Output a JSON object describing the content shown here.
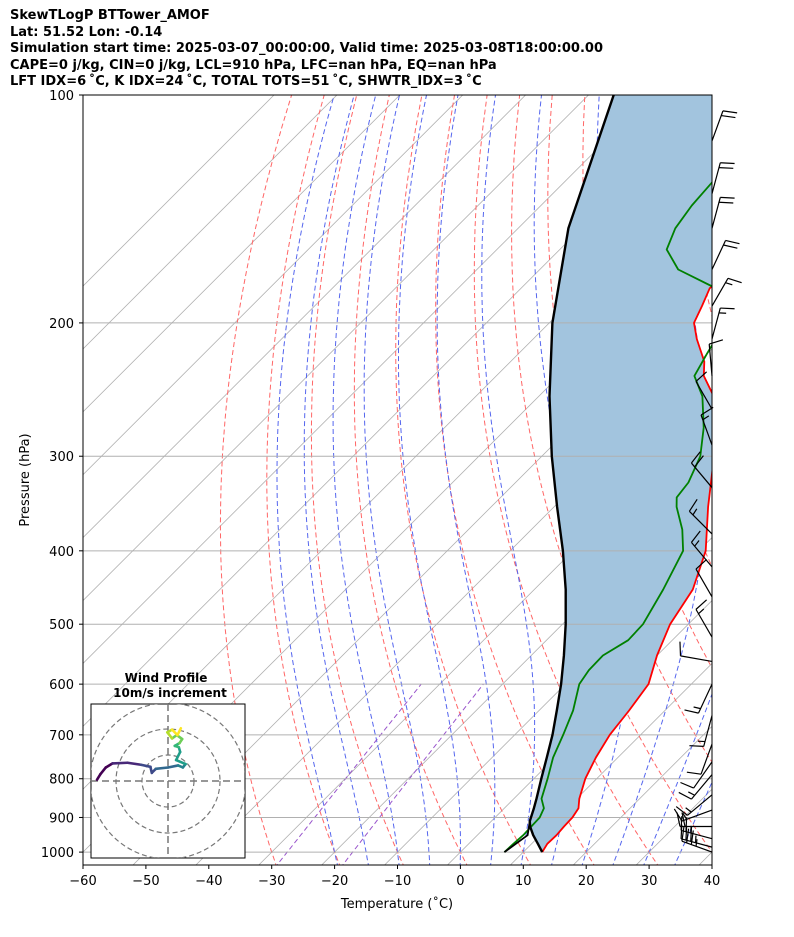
{
  "header": {
    "line1": "SkewTLogP BTTower_AMOF",
    "line2": "Lat: 51.52   Lon: -0.14",
    "line3": "Simulation start time: 2025-03-07_00:00:00, Valid time: 2025-03-08T18:00:00.00",
    "line4": "CAPE=0 j/kg, CIN=0 j/kg, LCL=910 hPa, LFC=nan hPa, EQ=nan hPa",
    "line5": "LFT IDX=6 ˚C, K IDX=24 ˚C, TOTAL TOTS=51 ˚C, SHWTR_IDX=3 ˚C"
  },
  "colors": {
    "temperature": "#ff0000",
    "dewpoint": "#008000",
    "parcel": "#000000",
    "cape_fill": "#a2c4de",
    "dry_adiabat": "#ff6666",
    "moist_adiabat": "#5566ee",
    "mixing_ratio": "#9955cc",
    "isotherm": "#b0b0b0"
  },
  "chart_data": {
    "type": "line",
    "subtype": "skew-T log-P",
    "xlabel": "Temperature (˚C)",
    "ylabel": "Pressure (hPa)",
    "xlim": [
      -60,
      40
    ],
    "ylim": [
      1040,
      100
    ],
    "xticks": [
      "−60",
      "−50",
      "−40",
      "−30",
      "−20",
      "−10",
      "0",
      "10",
      "20",
      "30",
      "40"
    ],
    "xtick_values": [
      -60,
      -50,
      -40,
      -30,
      -20,
      -10,
      0,
      10,
      20,
      30,
      40
    ],
    "yticks": [
      "100",
      "200",
      "300",
      "400",
      "500",
      "600",
      "700",
      "800",
      "900",
      "1000"
    ],
    "ytick_values": [
      100,
      200,
      300,
      400,
      500,
      600,
      700,
      800,
      900,
      1000
    ],
    "grid": true,
    "series": [
      {
        "name": "Temperature",
        "points": [
          [
            1000,
            13.0
          ],
          [
            975,
            12.5
          ],
          [
            950,
            12.6
          ],
          [
            925,
            12.4
          ],
          [
            900,
            12.3
          ],
          [
            875,
            11.8
          ],
          [
            850,
            10.4
          ],
          [
            800,
            8.2
          ],
          [
            750,
            6.5
          ],
          [
            700,
            5.1
          ],
          [
            650,
            4.3
          ],
          [
            600,
            3.2
          ],
          [
            550,
            0.0
          ],
          [
            500,
            -2.9
          ],
          [
            450,
            -4.8
          ],
          [
            400,
            -8.9
          ],
          [
            350,
            -15.5
          ],
          [
            300,
            -22.6
          ],
          [
            275,
            -27.0
          ],
          [
            250,
            -32.2
          ],
          [
            235,
            -37.0
          ],
          [
            225,
            -39.2
          ],
          [
            210,
            -44.0
          ],
          [
            200,
            -47.0
          ],
          [
            190,
            -48.4
          ],
          [
            180,
            -50.0
          ],
          [
            165,
            -49.4
          ],
          [
            150,
            -48.5
          ],
          [
            140,
            -49.0
          ],
          [
            130,
            -51.0
          ],
          [
            120,
            -53.0
          ],
          [
            110,
            -55.0
          ],
          [
            100,
            -57.2
          ]
        ]
      },
      {
        "name": "Dewpoint",
        "points": [
          [
            1000,
            7.0
          ],
          [
            975,
            7.1
          ],
          [
            950,
            7.3
          ],
          [
            925,
            7.2
          ],
          [
            900,
            7.1
          ],
          [
            875,
            6.3
          ],
          [
            850,
            4.4
          ],
          [
            800,
            2.2
          ],
          [
            750,
            -0.3
          ],
          [
            700,
            -2.3
          ],
          [
            650,
            -4.6
          ],
          [
            600,
            -7.8
          ],
          [
            575,
            -8.5
          ],
          [
            550,
            -8.6
          ],
          [
            525,
            -7.0
          ],
          [
            500,
            -7.2
          ],
          [
            450,
            -9.5
          ],
          [
            400,
            -12.5
          ],
          [
            375,
            -16.0
          ],
          [
            350,
            -20.5
          ],
          [
            340,
            -22.0
          ],
          [
            325,
            -22.5
          ],
          [
            300,
            -24.8
          ],
          [
            275,
            -28.8
          ],
          [
            250,
            -34.0
          ],
          [
            235,
            -38.5
          ],
          [
            220,
            -40.0
          ],
          [
            210,
            -41.0
          ],
          [
            200,
            -42.5
          ],
          [
            190,
            -44.0
          ],
          [
            180,
            -49.0
          ],
          [
            170,
            -58.0
          ],
          [
            160,
            -63.0
          ],
          [
            150,
            -65.0
          ],
          [
            140,
            -66.0
          ],
          [
            130,
            -66.5
          ],
          [
            120,
            -67.0
          ],
          [
            110,
            -68.0
          ],
          [
            100,
            -68.5
          ]
        ]
      },
      {
        "name": "Parcel",
        "points": [
          [
            1000,
            13.0
          ],
          [
            975,
            11.0
          ],
          [
            950,
            8.9
          ],
          [
            925,
            7.0
          ],
          [
            910,
            6.1
          ],
          [
            875,
            4.7
          ],
          [
            850,
            3.6
          ],
          [
            800,
            1.2
          ],
          [
            750,
            -1.3
          ],
          [
            700,
            -4.0
          ],
          [
            650,
            -7.2
          ],
          [
            600,
            -10.7
          ],
          [
            550,
            -14.8
          ],
          [
            500,
            -19.5
          ],
          [
            450,
            -25.0
          ],
          [
            400,
            -31.6
          ],
          [
            350,
            -39.5
          ],
          [
            300,
            -48.4
          ],
          [
            250,
            -58.3
          ],
          [
            200,
            -69.5
          ],
          [
            150,
            -82.0
          ],
          [
            100,
            -96.0
          ]
        ]
      },
      {
        "name": "Surface Dewpoint Line",
        "points": [
          [
            1000,
            7.0
          ],
          [
            950,
            8.0
          ],
          [
            910,
            6.1
          ]
        ]
      }
    ],
    "shaded_region": {
      "name": "CAPE/CIN",
      "between": [
        "Temperature",
        "Parcel"
      ]
    },
    "background_lines": {
      "isotherms_step": 10,
      "dry_adiabats_theta_c": [
        -30,
        -20,
        -10,
        0,
        10,
        20,
        30,
        40,
        50,
        60,
        70,
        80,
        90,
        100
      ],
      "moist_adiabats_surface_t": [
        -20,
        -15,
        -10,
        -5,
        0,
        5,
        10,
        15,
        20,
        25,
        30,
        35
      ],
      "mixing_ratios_gkg": [
        0.4,
        1
      ]
    },
    "wind_barbs": [
      {
        "p": 1000,
        "speed_kt": 35,
        "dir": 290
      },
      {
        "p": 985,
        "speed_kt": 35,
        "dir": 285
      },
      {
        "p": 960,
        "speed_kt": 25,
        "dir": 285
      },
      {
        "p": 925,
        "speed_kt": 20,
        "dir": 270
      },
      {
        "p": 880,
        "speed_kt": 15,
        "dir": 250
      },
      {
        "p": 840,
        "speed_kt": 15,
        "dir": 230
      },
      {
        "p": 790,
        "speed_kt": 15,
        "dir": 220
      },
      {
        "p": 760,
        "speed_kt": 10,
        "dir": 215
      },
      {
        "p": 720,
        "speed_kt": 10,
        "dir": 200
      },
      {
        "p": 660,
        "speed_kt": 15,
        "dir": 195
      },
      {
        "p": 600,
        "speed_kt": 15,
        "dir": 205
      },
      {
        "p": 560,
        "speed_kt": 10,
        "dir": 280
      },
      {
        "p": 520,
        "speed_kt": 15,
        "dir": 330
      },
      {
        "p": 460,
        "speed_kt": 10,
        "dir": 330
      },
      {
        "p": 420,
        "speed_kt": 15,
        "dir": 320
      },
      {
        "p": 380,
        "speed_kt": 15,
        "dir": 315
      },
      {
        "p": 330,
        "speed_kt": 20,
        "dir": 320
      },
      {
        "p": 290,
        "speed_kt": 15,
        "dir": 340
      },
      {
        "p": 260,
        "speed_kt": 10,
        "dir": 330
      },
      {
        "p": 235,
        "speed_kt": 10,
        "dir": 355
      },
      {
        "p": 210,
        "speed_kt": 15,
        "dir": 15
      },
      {
        "p": 190,
        "speed_kt": 15,
        "dir": 30
      },
      {
        "p": 170,
        "speed_kt": 20,
        "dir": 25
      },
      {
        "p": 150,
        "speed_kt": 20,
        "dir": 15
      },
      {
        "p": 135,
        "speed_kt": 20,
        "dir": 15
      },
      {
        "p": 115,
        "speed_kt": 20,
        "dir": 20
      }
    ],
    "inset": {
      "title_line1": "Wind Profile",
      "title_line2": "10m/s increment",
      "ring_step_ms": 10,
      "rings": 3,
      "hodograph": [
        [
          -10.5,
          0.2
        ],
        [
          -10,
          1
        ],
        [
          -9.2,
          2
        ],
        [
          -8.2,
          2.6
        ],
        [
          -6,
          2.7
        ],
        [
          -4,
          2.4
        ],
        [
          -2.6,
          2.1
        ],
        [
          -2.4,
          1.2
        ],
        [
          -1.8,
          1.8
        ],
        [
          0,
          2
        ],
        [
          1.5,
          2.3
        ],
        [
          2.2,
          2
        ],
        [
          2.6,
          2.5
        ],
        [
          1.2,
          3.1
        ],
        [
          1.8,
          4.3
        ],
        [
          1.6,
          5.0
        ],
        [
          1.0,
          5.2
        ],
        [
          1.7,
          5.6
        ],
        [
          2.1,
          6.2
        ],
        [
          1.3,
          6.8
        ],
        [
          0.6,
          6.3
        ],
        [
          -0.1,
          7.2
        ],
        [
          0.6,
          7.6
        ],
        [
          1.4,
          6.8
        ],
        [
          1.9,
          7.8
        ]
      ]
    }
  }
}
